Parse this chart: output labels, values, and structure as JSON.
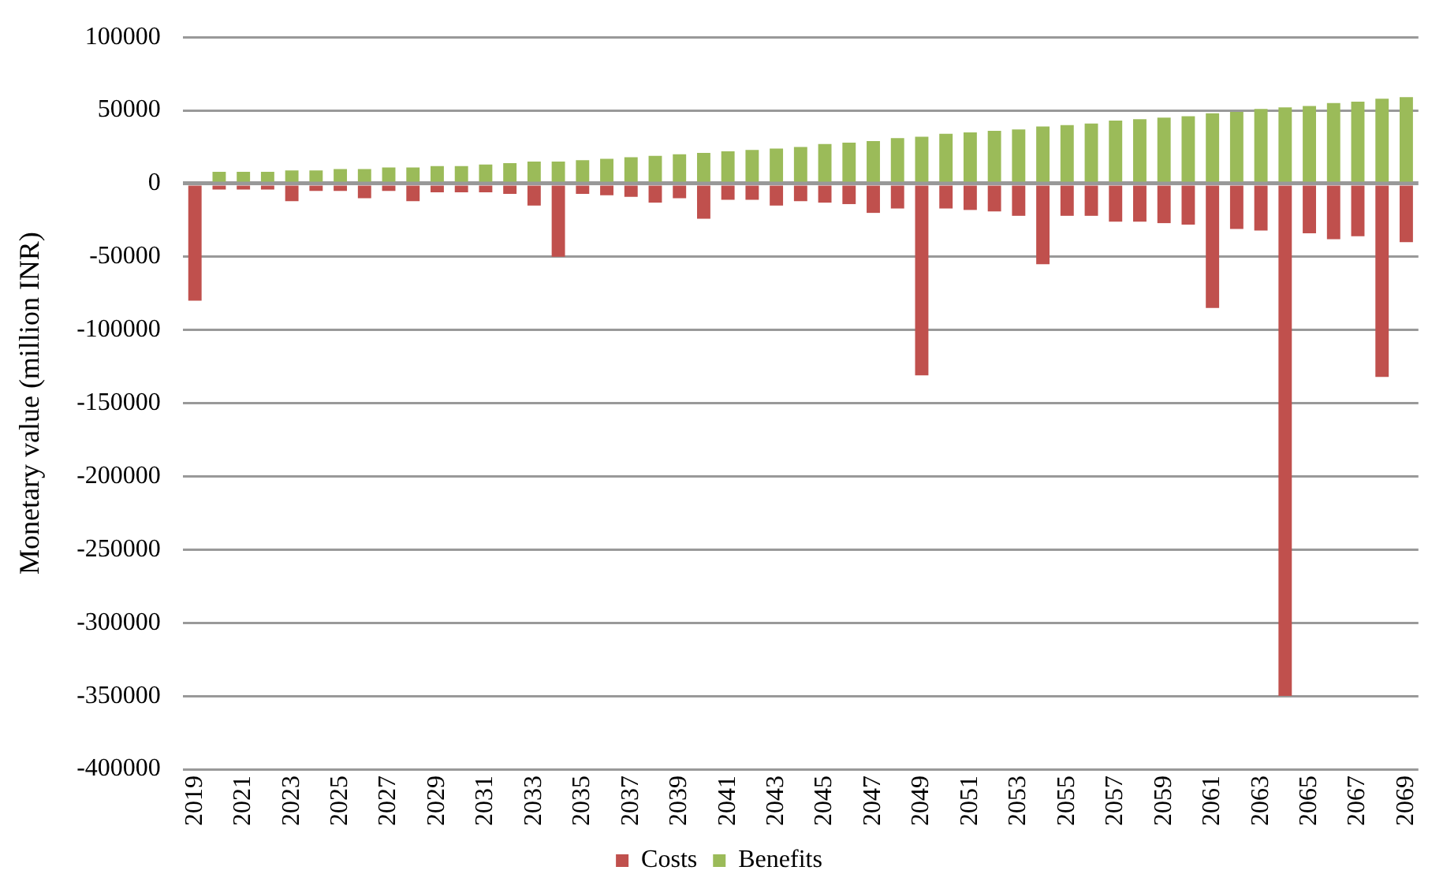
{
  "chart_data": {
    "type": "bar",
    "stacked": true,
    "ylabel": "Monetary value (million INR)",
    "categories": [
      "2019",
      null,
      "2021",
      null,
      "2023",
      null,
      "2025",
      null,
      "2027",
      null,
      "2029",
      null,
      "2031",
      null,
      "2033",
      null,
      "2035",
      null,
      "2037",
      null,
      "2039",
      null,
      "2041",
      null,
      "2043",
      null,
      "2045",
      null,
      "2047",
      null,
      "2049",
      null,
      "2051",
      null,
      "2053",
      null,
      "2055",
      null,
      "2057",
      null,
      "2059",
      null,
      "2061",
      null,
      "2063",
      null,
      "2065",
      null,
      "2067",
      null,
      "2069"
    ],
    "series": [
      {
        "name": "Costs",
        "color": "#c0504d",
        "values": [
          -80000,
          -4000,
          -4000,
          -4000,
          -12000,
          -5000,
          -5000,
          -10000,
          -5000,
          -12000,
          -6000,
          -6000,
          -6000,
          -7000,
          -15000,
          -50000,
          -7000,
          -8000,
          -9000,
          -13000,
          -10000,
          -24000,
          -11000,
          -11000,
          -15000,
          -12000,
          -13000,
          -14000,
          -20000,
          -17000,
          -131000,
          -17000,
          -18000,
          -19000,
          -22000,
          -55000,
          -22000,
          -22000,
          -26000,
          -26000,
          -27000,
          -28000,
          -85000,
          -31000,
          -32000,
          -350000,
          -34000,
          -38000,
          -36000,
          -132000,
          -40000
        ]
      },
      {
        "name": "Benefits",
        "color": "#9bbb59",
        "values": [
          null,
          8000,
          8000,
          8000,
          9000,
          9000,
          10000,
          10000,
          11000,
          11000,
          12000,
          12000,
          13000,
          14000,
          15000,
          15000,
          16000,
          17000,
          18000,
          19000,
          20000,
          21000,
          22000,
          23000,
          24000,
          25000,
          27000,
          28000,
          29000,
          31000,
          32000,
          34000,
          35000,
          36000,
          37000,
          39000,
          40000,
          41000,
          43000,
          44000,
          45000,
          46000,
          48000,
          49000,
          51000,
          52000,
          53000,
          55000,
          56000,
          58000,
          59000
        ]
      }
    ],
    "ylim": [
      -400000,
      100000
    ],
    "yticks": [
      -400000,
      -350000,
      -300000,
      -250000,
      -200000,
      -150000,
      -100000,
      -50000,
      0,
      50000,
      100000
    ],
    "grid": "y",
    "legend": "bottom"
  }
}
